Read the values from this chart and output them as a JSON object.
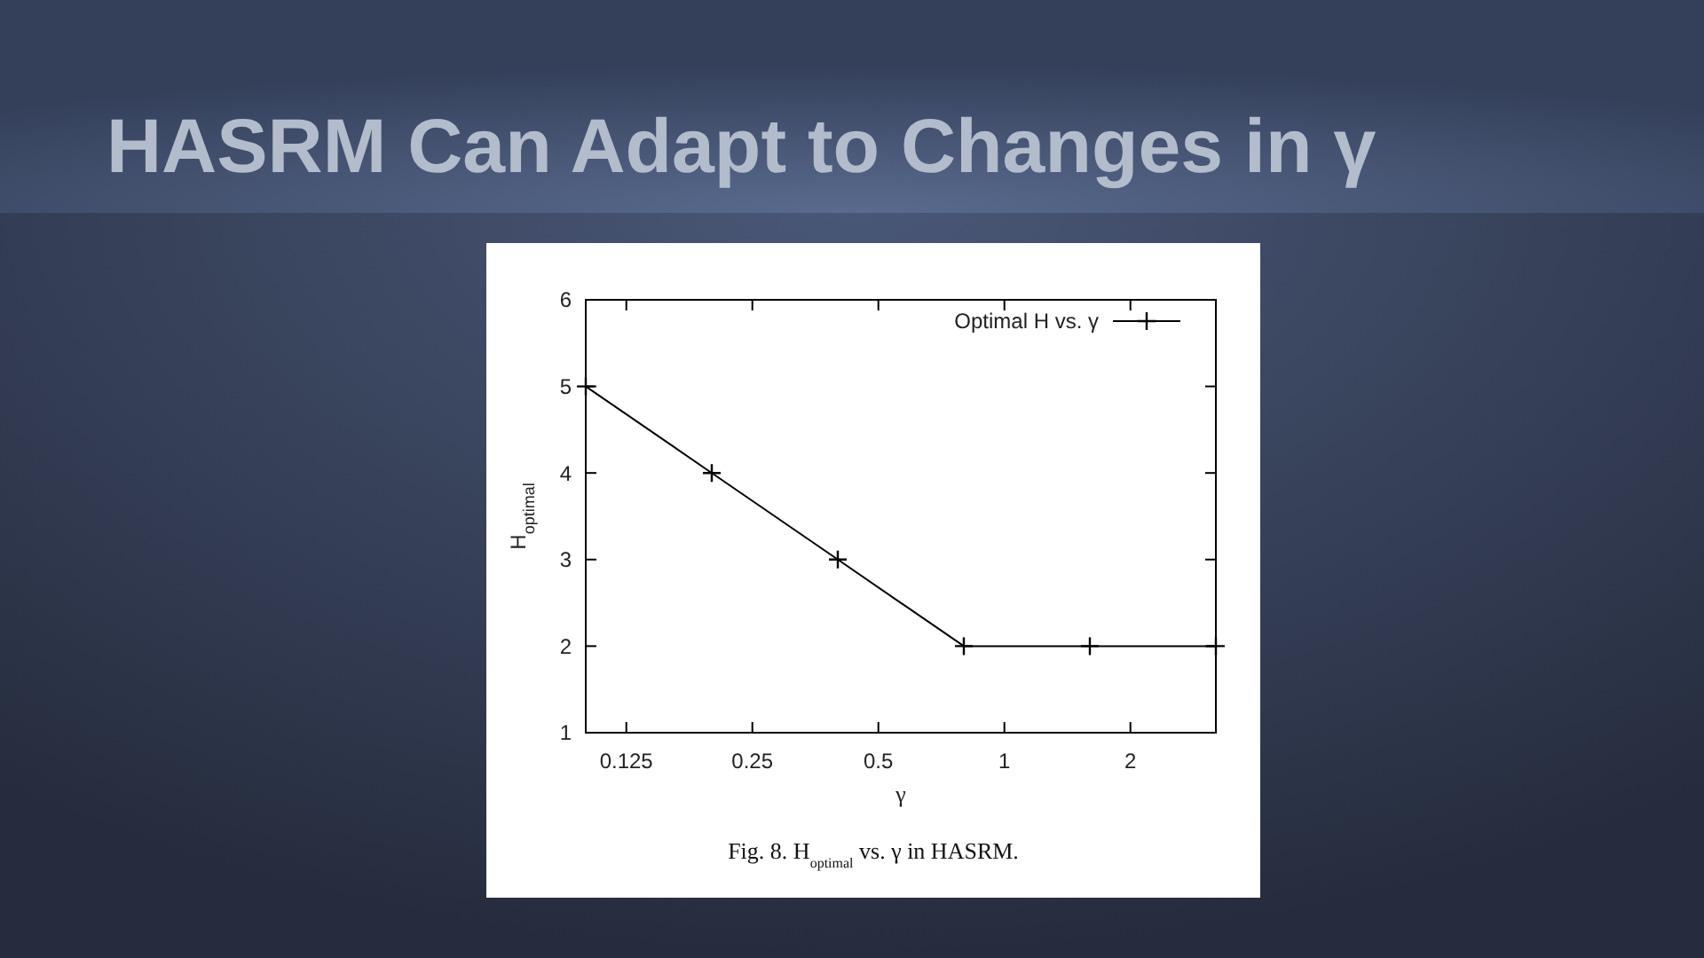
{
  "chart_data": {
    "type": "line",
    "title": "HASRM Can Adapt to Changes in γ",
    "xlabel": "γ",
    "ylabel": "H$_{optimal}$",
    "annotations": [
      "Fig. 8. H$_{optimal}$ vs. γ in HASRM."
    ],
    "x": [
      0.1,
      0.2,
      0.4,
      0.8,
      1.6,
      3.2
    ],
    "series": [
      {
        "name": "Optimal H vs. γ",
        "color": "#000000",
        "values": [
          5,
          4,
          3,
          2,
          2,
          2
        ]
      }
    ],
    "log": "x",
    "xlim": [
      0.1,
      3.2
    ],
    "ylim": [
      1,
      6
    ],
    "xticks": [
      0.125,
      0.25,
      0.5,
      1,
      2
    ],
    "yticks": [
      1,
      2,
      3,
      4,
      5,
      6
    ],
    "grid": false,
    "legend": "top right",
    "marker": "cross",
    "line_style": "solid"
  }
}
